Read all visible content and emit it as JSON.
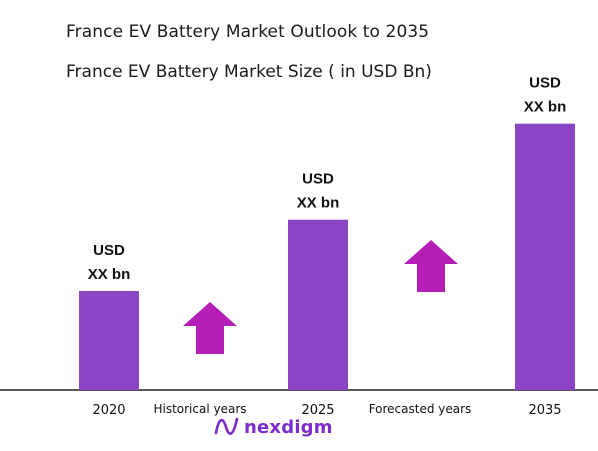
{
  "chart_data": {
    "type": "bar",
    "title": "France EV Battery Market Outlook to 2035",
    "subtitle": "France EV Battery Market Size ( in USD Bn)",
    "categories": [
      "2020",
      "2025",
      "2035"
    ],
    "values": [
      1,
      1.72,
      2.69
    ],
    "data_labels": [
      [
        "USD",
        "XX bn"
      ],
      [
        "USD",
        "XX bn"
      ],
      [
        "USD",
        "XX bn"
      ]
    ],
    "period_labels": [
      "Historical years",
      "Forecasted years"
    ],
    "bar_color": "#8b44c4",
    "arrow_color": "#b51fb6",
    "grid": false,
    "legend": "none"
  },
  "brand": {
    "name": "nexdigm",
    "color": "#7b2cc9"
  }
}
